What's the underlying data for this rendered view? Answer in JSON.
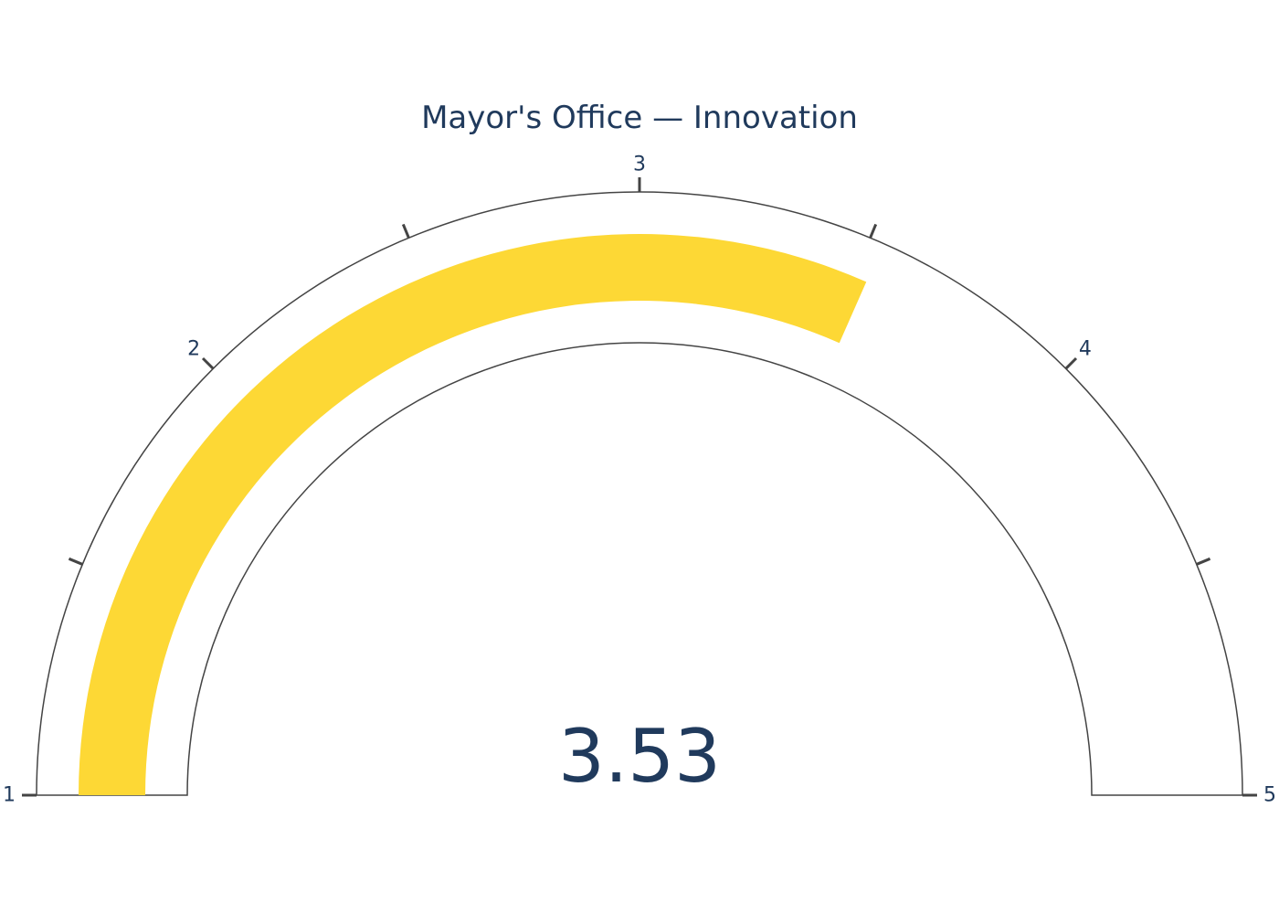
{
  "chart_data": {
    "type": "gauge",
    "title": "Mayor's Office — Innovation",
    "value": 3.53,
    "value_label": "3.53",
    "range": [
      1,
      5
    ],
    "major_ticks": [
      {
        "value": 1,
        "label": "1"
      },
      {
        "value": 2,
        "label": "2"
      },
      {
        "value": 3,
        "label": "3"
      },
      {
        "value": 4,
        "label": "4"
      },
      {
        "value": 5,
        "label": "5"
      }
    ],
    "minor_ticks": [
      1.5,
      2.5,
      3.5,
      4.5
    ],
    "colors": {
      "bar": "#FDD835",
      "text": "#203A5C",
      "outline": "#444444"
    }
  }
}
